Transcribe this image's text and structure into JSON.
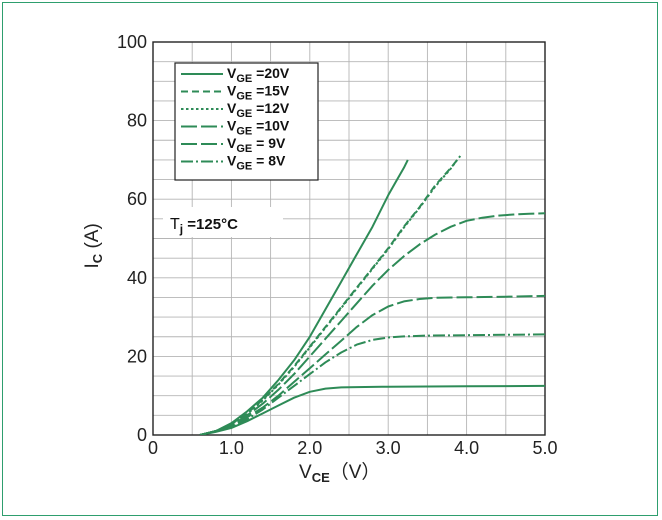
{
  "chart_data": {
    "type": "line",
    "xlabel": {
      "main": "V",
      "sub": "CE",
      "unit": "（V）"
    },
    "ylabel": {
      "main": "I",
      "sub": "C",
      "unit": " (A)"
    },
    "xlim": [
      0,
      5
    ],
    "ylim": [
      0,
      100
    ],
    "x_ticks": [
      "0",
      "1.0",
      "2.0",
      "3.0",
      "4.0",
      "5.0"
    ],
    "y_ticks": [
      "0",
      "20",
      "40",
      "60",
      "80",
      "100"
    ],
    "grid": true,
    "legend_position": "top-left",
    "annotation": {
      "main": "T",
      "sub": "j",
      "rest": " =125°C"
    },
    "line_color": "#2e8b57",
    "series": [
      {
        "name_main": "V",
        "name_sub": "GE",
        "name_rest": " =20V",
        "dash": "solid",
        "points": [
          [
            0.6,
            0
          ],
          [
            0.8,
            1
          ],
          [
            1.0,
            3
          ],
          [
            1.2,
            6
          ],
          [
            1.4,
            9.5
          ],
          [
            1.6,
            14
          ],
          [
            1.8,
            19
          ],
          [
            2.0,
            25
          ],
          [
            2.2,
            32
          ],
          [
            2.4,
            39
          ],
          [
            2.6,
            46
          ],
          [
            2.8,
            53
          ],
          [
            3.0,
            61
          ],
          [
            3.1,
            64.5
          ],
          [
            3.2,
            68
          ],
          [
            3.25,
            70
          ]
        ]
      },
      {
        "name_main": "V",
        "name_sub": "GE",
        "name_rest": " =15V",
        "dash": "short-dash",
        "points": [
          [
            0.6,
            0
          ],
          [
            0.8,
            1
          ],
          [
            1.0,
            2.8
          ],
          [
            1.2,
            5.5
          ],
          [
            1.4,
            9
          ],
          [
            1.6,
            13
          ],
          [
            1.8,
            17.5
          ],
          [
            2.0,
            22.5
          ],
          [
            2.2,
            27.5
          ],
          [
            2.4,
            32.5
          ],
          [
            2.6,
            37.5
          ],
          [
            2.8,
            42.5
          ],
          [
            3.0,
            47.5
          ],
          [
            3.2,
            53
          ],
          [
            3.4,
            58
          ],
          [
            3.6,
            63.5
          ],
          [
            3.8,
            68
          ],
          [
            3.92,
            71
          ]
        ]
      },
      {
        "name_main": "V",
        "name_sub": "GE",
        "name_rest": " =12V",
        "dash": "dotted",
        "points": [
          [
            0.6,
            0
          ],
          [
            0.8,
            1
          ],
          [
            1.0,
            2.7
          ],
          [
            1.2,
            5.3
          ],
          [
            1.4,
            8.8
          ],
          [
            1.6,
            12.8
          ],
          [
            1.8,
            17.3
          ],
          [
            2.0,
            22.3
          ],
          [
            2.2,
            27.3
          ],
          [
            2.4,
            32.3
          ],
          [
            2.6,
            37.3
          ],
          [
            2.8,
            42.3
          ],
          [
            3.0,
            47.3
          ],
          [
            3.2,
            52.8
          ],
          [
            3.4,
            57.8
          ],
          [
            3.6,
            63.2
          ],
          [
            3.8,
            67.8
          ],
          [
            3.88,
            70
          ]
        ]
      },
      {
        "name_main": "V",
        "name_sub": "GE",
        "name_rest": " =10V",
        "dash": "long-dash",
        "points": [
          [
            0.6,
            0
          ],
          [
            0.8,
            1
          ],
          [
            1.0,
            2.5
          ],
          [
            1.2,
            5
          ],
          [
            1.4,
            8
          ],
          [
            1.6,
            11.5
          ],
          [
            1.8,
            15.5
          ],
          [
            2.0,
            20
          ],
          [
            2.2,
            24.5
          ],
          [
            2.4,
            29
          ],
          [
            2.6,
            33.5
          ],
          [
            2.8,
            38
          ],
          [
            3.0,
            42
          ],
          [
            3.2,
            45.5
          ],
          [
            3.4,
            48.5
          ],
          [
            3.6,
            51
          ],
          [
            3.8,
            53
          ],
          [
            4.0,
            54.5
          ],
          [
            4.2,
            55.3
          ],
          [
            4.4,
            55.8
          ],
          [
            4.6,
            56.1
          ],
          [
            4.8,
            56.3
          ],
          [
            5.0,
            56.4
          ]
        ]
      },
      {
        "name_main": "V",
        "name_sub": "GE",
        "name_rest": " = 9V",
        "dash": "long-dash",
        "points": [
          [
            0.6,
            0
          ],
          [
            0.8,
            1
          ],
          [
            1.0,
            2.2
          ],
          [
            1.2,
            4.5
          ],
          [
            1.4,
            7
          ],
          [
            1.6,
            10
          ],
          [
            1.8,
            13.5
          ],
          [
            2.0,
            17
          ],
          [
            2.2,
            20.5
          ],
          [
            2.4,
            24
          ],
          [
            2.6,
            27.5
          ],
          [
            2.8,
            30.5
          ],
          [
            3.0,
            32.7
          ],
          [
            3.2,
            34
          ],
          [
            3.4,
            34.6
          ],
          [
            3.6,
            34.9
          ],
          [
            3.8,
            35
          ],
          [
            4.0,
            35.05
          ],
          [
            4.5,
            35.2
          ],
          [
            5.0,
            35.4
          ]
        ]
      },
      {
        "name_main": "V",
        "name_sub": "GE",
        "name_rest": " = 8V",
        "dash": "dash-dot",
        "points": [
          [
            0.6,
            0
          ],
          [
            0.8,
            1
          ],
          [
            1.0,
            2
          ],
          [
            1.2,
            4
          ],
          [
            1.4,
            6.5
          ],
          [
            1.6,
            9.5
          ],
          [
            1.8,
            12.5
          ],
          [
            2.0,
            15.5
          ],
          [
            2.2,
            18.5
          ],
          [
            2.4,
            21
          ],
          [
            2.6,
            23
          ],
          [
            2.8,
            24.2
          ],
          [
            3.0,
            24.8
          ],
          [
            3.2,
            25.1
          ],
          [
            3.5,
            25.3
          ],
          [
            4.0,
            25.4
          ],
          [
            4.5,
            25.5
          ],
          [
            5.0,
            25.6
          ]
        ]
      },
      {
        "name_main": "",
        "name_sub": "",
        "name_rest": "",
        "dash": "solid",
        "points": [
          [
            0.6,
            0
          ],
          [
            0.8,
            0.8
          ],
          [
            1.0,
            1.8
          ],
          [
            1.2,
            3.5
          ],
          [
            1.4,
            5.5
          ],
          [
            1.6,
            7.5
          ],
          [
            1.8,
            9.5
          ],
          [
            2.0,
            11
          ],
          [
            2.2,
            11.8
          ],
          [
            2.4,
            12.1
          ],
          [
            2.6,
            12.2
          ],
          [
            3.0,
            12.3
          ],
          [
            4.0,
            12.4
          ],
          [
            5.0,
            12.5
          ]
        ]
      }
    ]
  }
}
